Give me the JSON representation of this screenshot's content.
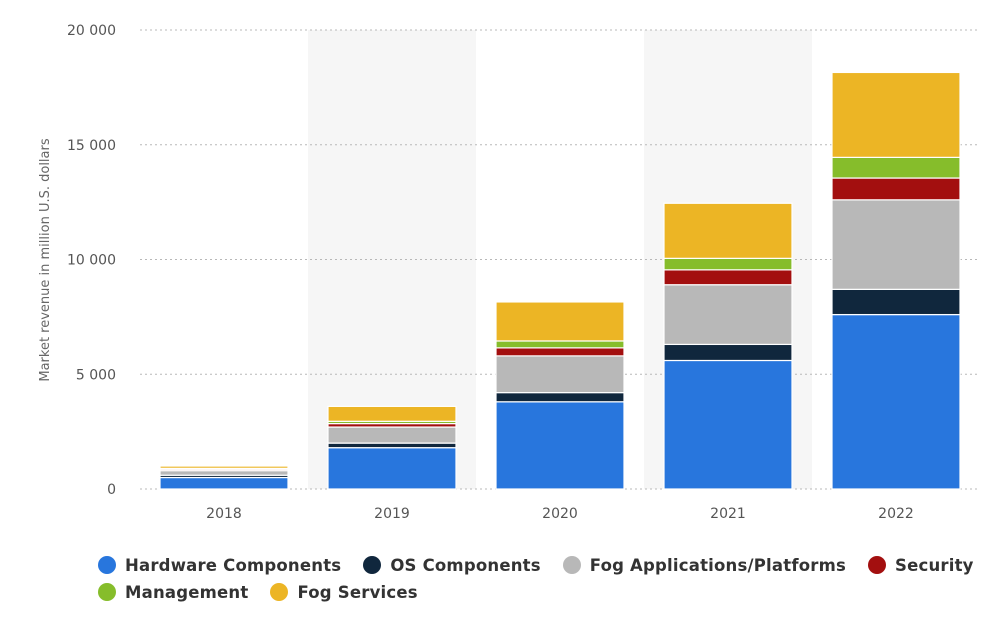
{
  "chart_data": {
    "type": "bar",
    "stacked": true,
    "categories": [
      "2018",
      "2019",
      "2020",
      "2021",
      "2022"
    ],
    "ylabel": "Market revenue in million U.S. dollars",
    "ylim": [
      0,
      20000
    ],
    "yticks": [
      0,
      5000,
      10000,
      15000,
      20000
    ],
    "ytick_labels": [
      "0",
      "5 000",
      "10 000",
      "15 000",
      "20 000"
    ],
    "grid": true,
    "legend_position": "bottom",
    "series": [
      {
        "name": "Hardware Components",
        "color": "#2876dd",
        "values": [
          500,
          1800,
          3800,
          5600,
          7600
        ]
      },
      {
        "name": "OS Components",
        "color": "#10273d",
        "values": [
          100,
          200,
          400,
          700,
          1100
        ]
      },
      {
        "name": "Fog Applications/Platforms",
        "color": "#b8b8b8",
        "values": [
          200,
          700,
          1600,
          2600,
          3900
        ]
      },
      {
        "name": "Security",
        "color": "#a30f0f",
        "values": [
          60,
          150,
          350,
          650,
          950
        ]
      },
      {
        "name": "Management",
        "color": "#86bd2b",
        "values": [
          40,
          100,
          300,
          500,
          900
        ]
      },
      {
        "name": "Fog Services",
        "color": "#ecb525",
        "values": [
          100,
          650,
          1700,
          2400,
          3700
        ]
      }
    ]
  }
}
